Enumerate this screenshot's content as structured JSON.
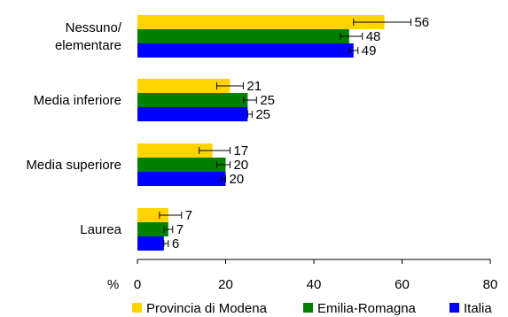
{
  "chart_data": {
    "type": "bar",
    "orientation": "horizontal",
    "categories": [
      "Nessuno/\nelementare",
      "Media inferiore",
      "Media superiore",
      "Laurea"
    ],
    "series": [
      {
        "name": "Provincia di Modena",
        "color": "#ffd400",
        "values": [
          56,
          21,
          17,
          7
        ],
        "error": [
          [
            49,
            62
          ],
          [
            18,
            24
          ],
          [
            14,
            21
          ],
          [
            5,
            10
          ]
        ]
      },
      {
        "name": "Emilia-Romagna",
        "color": "#008000",
        "values": [
          48,
          25,
          20,
          7
        ],
        "error": [
          [
            46,
            51
          ],
          [
            24,
            27
          ],
          [
            18,
            21
          ],
          [
            6,
            8
          ]
        ]
      },
      {
        "name": "Italia",
        "color": "#0000ff",
        "values": [
          49,
          25,
          20,
          6
        ],
        "error": [
          [
            48,
            50
          ],
          [
            25,
            26
          ],
          [
            19,
            20
          ],
          [
            6,
            7
          ]
        ]
      }
    ],
    "xlabel": "%",
    "xlim": [
      0,
      80
    ],
    "xticks": [
      0,
      20,
      40,
      60,
      80
    ],
    "grid": false,
    "legend_position": "bottom"
  }
}
